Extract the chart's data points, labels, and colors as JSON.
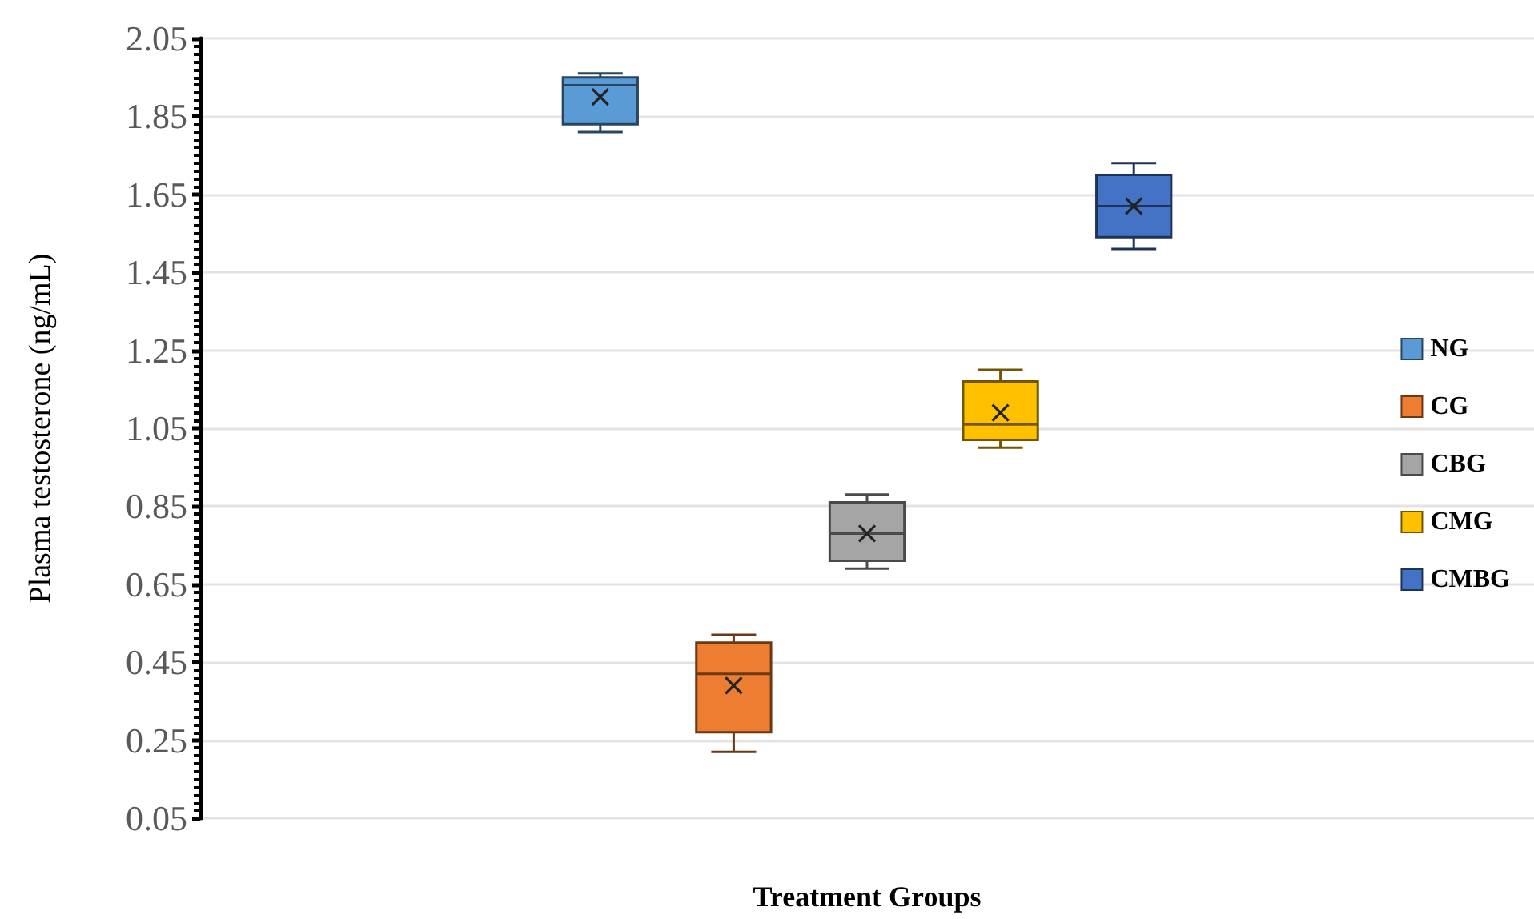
{
  "chart_data": {
    "type": "box",
    "xlabel": "Treatment Groups",
    "ylabel": "Plasma testosterone (ng/mL)",
    "categories": [
      null
    ],
    "series": [
      {
        "name": "NG",
        "color": "#5b9bd5",
        "boxes": [
          {
            "low": 1.81,
            "q1": 1.83,
            "median": 1.93,
            "q3": 1.95,
            "high": 1.96,
            "mean": 1.9
          }
        ]
      },
      {
        "name": "CG",
        "color": "#ed7d31",
        "boxes": [
          {
            "low": 0.22,
            "q1": 0.27,
            "median": 0.42,
            "q3": 0.5,
            "high": 0.52,
            "mean": 0.39
          }
        ]
      },
      {
        "name": "CBG",
        "color": "#a5a5a5",
        "boxes": [
          {
            "low": 0.69,
            "q1": 0.71,
            "median": 0.78,
            "q3": 0.86,
            "high": 0.88,
            "mean": 0.78
          }
        ]
      },
      {
        "name": "CMG",
        "color": "#ffc000",
        "boxes": [
          {
            "low": 1.0,
            "q1": 1.02,
            "median": 1.06,
            "q3": 1.17,
            "high": 1.2,
            "mean": 1.09
          }
        ]
      },
      {
        "name": "CMBG",
        "color": "#4472c4",
        "boxes": [
          {
            "low": 1.51,
            "q1": 1.54,
            "median": 1.62,
            "q3": 1.7,
            "high": 1.73,
            "mean": 1.62
          }
        ]
      }
    ],
    "ylim": [
      0.05,
      2.05
    ],
    "yticks": [
      0.05,
      0.25,
      0.45,
      0.65,
      0.85,
      1.05,
      1.25,
      1.45,
      1.65,
      1.85,
      2.05
    ],
    "grid": "y",
    "legend": "right"
  }
}
